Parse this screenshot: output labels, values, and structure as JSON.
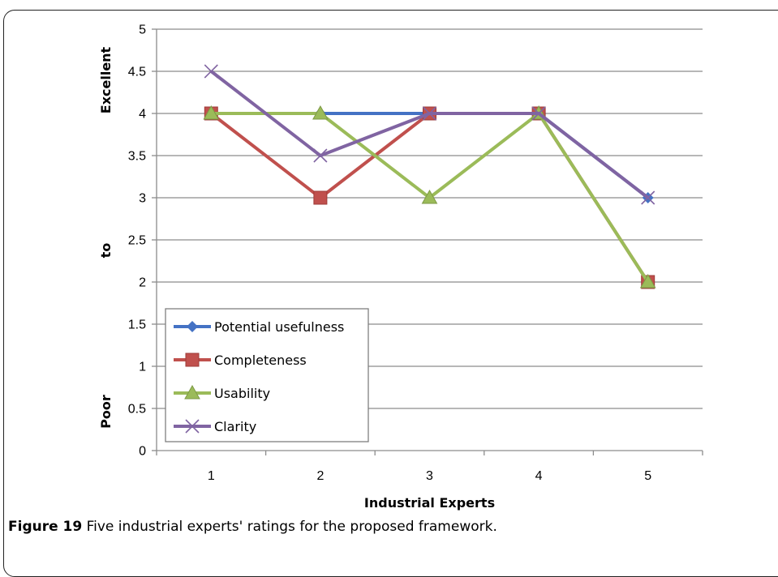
{
  "caption": {
    "label": "Figure 19",
    "text": " Five industrial experts' ratings for the proposed framework."
  },
  "chart_data": {
    "type": "line",
    "categories": [
      "1",
      "2",
      "3",
      "4",
      "5"
    ],
    "xlabel": "Industrial Experts",
    "ylabel_segments": {
      "top": "Excellent",
      "middle": "to",
      "bottom": "Poor"
    },
    "ylim": [
      0,
      5
    ],
    "yticks": [
      "0",
      "0.5",
      "1",
      "1.5",
      "2",
      "2.5",
      "3",
      "3.5",
      "4",
      "4.5",
      "5"
    ],
    "ytick_values": [
      0,
      0.5,
      1,
      1.5,
      2,
      2.5,
      3,
      3.5,
      4,
      4.5,
      5
    ],
    "grid": true,
    "legend_position": "bottom-left",
    "series": [
      {
        "name": "Potential usefulness",
        "values": [
          4,
          4,
          4,
          4,
          3
        ],
        "color": "#4472C4",
        "marker": "diamond"
      },
      {
        "name": "Completeness",
        "values": [
          4,
          3,
          4,
          4,
          2
        ],
        "color": "#C0504D",
        "marker": "square"
      },
      {
        "name": "Usability",
        "values": [
          4,
          4,
          3,
          4,
          2
        ],
        "color": "#9BBB59",
        "marker": "triangle"
      },
      {
        "name": "Clarity",
        "values": [
          4.5,
          3.5,
          4,
          4,
          3
        ],
        "color": "#8064A2",
        "marker": "x"
      }
    ]
  }
}
